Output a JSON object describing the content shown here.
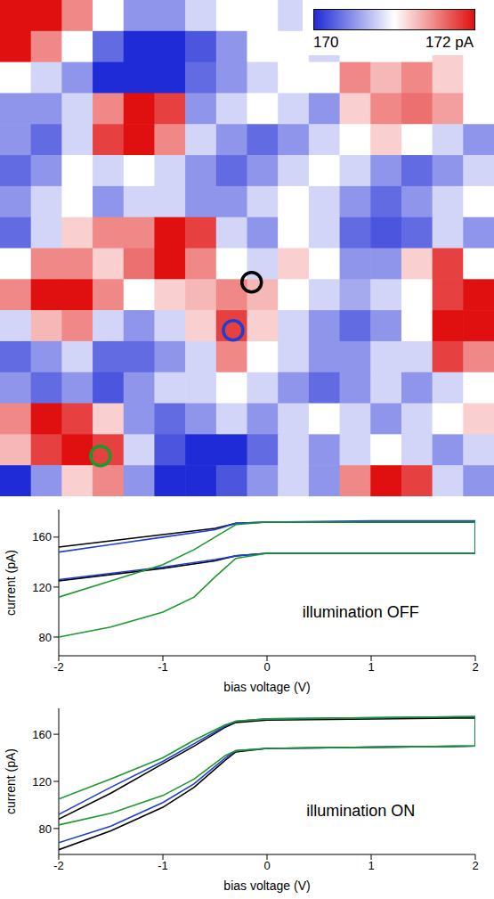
{
  "chart_data": [
    {
      "type": "heatmap",
      "tick_labels": false,
      "cells": [
        [
          172,
          172,
          171.5,
          171,
          170.5,
          170.5,
          170.8,
          171,
          171,
          170.8,
          171,
          171.2,
          171,
          170.8,
          171,
          171
        ],
        [
          172,
          171.5,
          171,
          170.3,
          170,
          170,
          170.2,
          170.5,
          171,
          171,
          170.8,
          171,
          171,
          171,
          171.2,
          171
        ],
        [
          171,
          170.8,
          170.5,
          170,
          170,
          170,
          170.3,
          170.5,
          170.8,
          171,
          171,
          171.5,
          171.3,
          171.5,
          171.2,
          171
        ],
        [
          170.5,
          170.5,
          170.8,
          171.5,
          172,
          171.8,
          170.5,
          170.8,
          171,
          170.8,
          170.5,
          171.2,
          171.5,
          171.6,
          171.4,
          171
        ],
        [
          170.5,
          170.3,
          170.8,
          171.8,
          172,
          171.5,
          170.8,
          170.5,
          170.3,
          170.5,
          170.8,
          171,
          171.2,
          171,
          170.8,
          170.5
        ],
        [
          170.3,
          170.5,
          171,
          170.8,
          171,
          170.8,
          170.5,
          170.3,
          170.5,
          170.8,
          171,
          170.8,
          170.5,
          170.3,
          170.5,
          170.8
        ],
        [
          170.5,
          170.8,
          171,
          170.5,
          170.8,
          170.8,
          170.5,
          170.5,
          170.8,
          171,
          170.8,
          170.5,
          170.3,
          170.5,
          170.8,
          171
        ],
        [
          170.3,
          170.8,
          171.2,
          171.5,
          171.5,
          172,
          171.8,
          170.8,
          170.5,
          171,
          170.8,
          170.3,
          170.2,
          170.3,
          170.8,
          170.5
        ],
        [
          171,
          171.5,
          171.5,
          171.2,
          171.6,
          172,
          171.5,
          171,
          170.8,
          171.2,
          171,
          170.5,
          170.5,
          171.2,
          171.8,
          171
        ],
        [
          171.5,
          172,
          172,
          171.5,
          171,
          171.2,
          171.3,
          171.5,
          171.3,
          171,
          170.8,
          170.6,
          170.8,
          171,
          171.8,
          172
        ],
        [
          170.8,
          171.3,
          171.5,
          170.8,
          170.5,
          170.8,
          171.2,
          171.8,
          171.2,
          170.8,
          170.5,
          170.3,
          170.5,
          171,
          172,
          172
        ],
        [
          170.3,
          170.5,
          170.8,
          170.3,
          170.3,
          170.5,
          170.8,
          171.5,
          171,
          170.8,
          170.5,
          170.5,
          170.8,
          170.8,
          171.8,
          171.5
        ],
        [
          170.5,
          170.3,
          170.5,
          170.2,
          170.5,
          170.8,
          170.8,
          171,
          170.8,
          170.5,
          170.3,
          170.5,
          170.8,
          170.5,
          170.8,
          171
        ],
        [
          171.5,
          172,
          171.8,
          171.2,
          170.5,
          170.3,
          170.5,
          170.8,
          170.5,
          170.8,
          171,
          170.8,
          170.5,
          170.8,
          171,
          171.2
        ],
        [
          171.3,
          171.8,
          172,
          171.8,
          170.8,
          170.2,
          170,
          170,
          170.3,
          170.8,
          170.5,
          170.8,
          171,
          170.8,
          170.5,
          170.8
        ],
        [
          170,
          170.5,
          171.2,
          171.5,
          170.5,
          170,
          170,
          170.2,
          170.5,
          170.8,
          170.5,
          171.5,
          172,
          171.8,
          170.8,
          170.5
        ]
      ],
      "colorbar": {
        "range": [
          170,
          172
        ],
        "ticks": [
          170,
          {
            "value": 172,
            "label": "172 pA"
          }
        ],
        "colors": [
          "#1f2bd6",
          "#ffffff",
          "#e01010"
        ]
      },
      "markers": [
        {
          "x": 8.15,
          "y": 9.1,
          "color": "#000000"
        },
        {
          "x": 7.55,
          "y": 10.65,
          "color": "#1f3fd0"
        },
        {
          "x": 3.25,
          "y": 14.7,
          "color": "#1a9a2a"
        }
      ]
    },
    {
      "type": "line",
      "xlabel": "bias voltage (V)",
      "ylabel": "current (pA)",
      "xlim": [
        -2,
        2
      ],
      "xticks": [
        -2,
        -1,
        0,
        1,
        2
      ],
      "ylim": [
        65,
        182
      ],
      "yticks": [
        80,
        120,
        160
      ],
      "annotations": [
        {
          "text": "illumination OFF",
          "x": 0.9,
          "y": 100
        }
      ],
      "series": [
        {
          "color": "#000000",
          "x": [
            -2,
            -1.5,
            -1,
            -0.5,
            -0.3,
            0,
            1,
            2,
            2,
            1,
            0,
            -0.3,
            -0.5,
            -1,
            -1.5,
            -2
          ],
          "values": [
            125,
            130,
            135,
            141,
            145,
            147,
            147,
            147,
            172,
            172,
            172,
            171,
            167,
            162,
            157,
            152
          ]
        },
        {
          "color": "#1f3fd0",
          "x": [
            -2,
            -1.5,
            -1,
            -0.5,
            -0.3,
            0,
            1,
            2,
            2,
            1,
            0,
            -0.3,
            -0.5,
            -1,
            -1.5,
            -2
          ],
          "values": [
            126,
            131,
            136,
            142,
            145,
            147,
            147,
            147,
            173,
            173,
            172,
            171,
            166,
            160,
            154,
            148
          ]
        },
        {
          "color": "#1a9a2a",
          "x": [
            -2,
            -1.5,
            -1,
            -0.7,
            -0.5,
            -0.3,
            0,
            1,
            2,
            2,
            1,
            0,
            -0.3,
            -0.5,
            -0.7,
            -1,
            -1.5,
            -2
          ],
          "values": [
            80,
            88,
            100,
            112,
            128,
            143,
            147,
            147,
            147,
            172,
            172,
            172,
            170,
            160,
            150,
            138,
            125,
            112
          ]
        }
      ]
    },
    {
      "type": "line",
      "xlabel": "bias voltage (V)",
      "ylabel": "current (pA)",
      "xlim": [
        -2,
        2
      ],
      "xticks": [
        -2,
        -1,
        0,
        1,
        2
      ],
      "ylim": [
        58,
        182
      ],
      "yticks": [
        80,
        120,
        160
      ],
      "annotations": [
        {
          "text": "illumination ON",
          "x": 0.9,
          "y": 95
        }
      ],
      "series": [
        {
          "color": "#000000",
          "x": [
            -2,
            -1.5,
            -1,
            -0.7,
            -0.4,
            -0.3,
            0,
            1,
            2,
            2,
            1,
            0,
            -0.3,
            -0.4,
            -0.7,
            -1,
            -1.5,
            -2
          ],
          "values": [
            62,
            78,
            98,
            115,
            138,
            145,
            148,
            149,
            150,
            174,
            173,
            172,
            170,
            166,
            150,
            135,
            110,
            88
          ]
        },
        {
          "color": "#1f3fd0",
          "x": [
            -2,
            -1.5,
            -1,
            -0.7,
            -0.4,
            -0.3,
            0,
            1,
            2,
            2,
            1,
            0,
            -0.3,
            -0.4,
            -0.7,
            -1,
            -1.5,
            -2
          ],
          "values": [
            68,
            82,
            102,
            118,
            140,
            146,
            148,
            149,
            150,
            175,
            174,
            173,
            171,
            167,
            152,
            137,
            115,
            92
          ]
        },
        {
          "color": "#1a9a2a",
          "x": [
            -2,
            -1.5,
            -1,
            -0.7,
            -0.4,
            -0.3,
            0,
            1,
            2,
            2,
            1,
            0,
            -0.3,
            -0.4,
            -0.7,
            -1,
            -1.5,
            -2
          ],
          "values": [
            83,
            93,
            108,
            122,
            142,
            146,
            148,
            149,
            150,
            175,
            174,
            173,
            171,
            168,
            155,
            140,
            122,
            105
          ]
        }
      ]
    }
  ]
}
